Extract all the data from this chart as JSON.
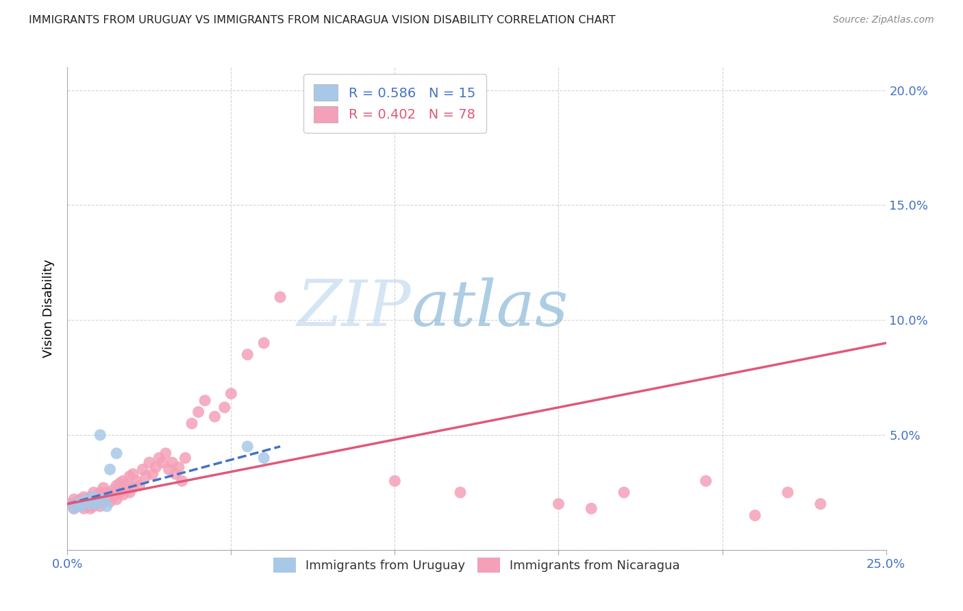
{
  "title": "IMMIGRANTS FROM URUGUAY VS IMMIGRANTS FROM NICARAGUA VISION DISABILITY CORRELATION CHART",
  "source": "Source: ZipAtlas.com",
  "ylabel": "Vision Disability",
  "xlim": [
    0.0,
    0.25
  ],
  "ylim": [
    0.0,
    0.21
  ],
  "x_ticks": [
    0.0,
    0.05,
    0.1,
    0.15,
    0.2,
    0.25
  ],
  "y_ticks": [
    0.0,
    0.05,
    0.1,
    0.15,
    0.2
  ],
  "legend_r1": "R = 0.586",
  "legend_n1": "N = 15",
  "legend_r2": "R = 0.402",
  "legend_n2": "N = 78",
  "uruguay_color": "#a8c8e8",
  "nicaragua_color": "#f4a0b8",
  "uruguay_line_color": "#4472c4",
  "nicaragua_line_color": "#e05878",
  "grid_color": "#d0d0d0",
  "title_color": "#222222",
  "axis_label_color": "#4472c4",
  "background_color": "#ffffff",
  "uruguay_scatter_x": [
    0.002,
    0.003,
    0.004,
    0.005,
    0.006,
    0.007,
    0.008,
    0.009,
    0.01,
    0.011,
    0.012,
    0.013,
    0.015,
    0.055,
    0.06
  ],
  "uruguay_scatter_y": [
    0.018,
    0.02,
    0.019,
    0.021,
    0.022,
    0.02,
    0.023,
    0.02,
    0.05,
    0.022,
    0.019,
    0.035,
    0.042,
    0.045,
    0.04
  ],
  "nicaragua_scatter_x": [
    0.001,
    0.002,
    0.002,
    0.003,
    0.003,
    0.004,
    0.004,
    0.005,
    0.005,
    0.005,
    0.006,
    0.006,
    0.007,
    0.007,
    0.007,
    0.008,
    0.008,
    0.008,
    0.009,
    0.009,
    0.01,
    0.01,
    0.01,
    0.011,
    0.011,
    0.011,
    0.012,
    0.012,
    0.013,
    0.013,
    0.014,
    0.014,
    0.015,
    0.015,
    0.016,
    0.016,
    0.017,
    0.017,
    0.018,
    0.018,
    0.019,
    0.019,
    0.02,
    0.02,
    0.021,
    0.022,
    0.023,
    0.024,
    0.025,
    0.026,
    0.027,
    0.028,
    0.029,
    0.03,
    0.031,
    0.032,
    0.033,
    0.034,
    0.035,
    0.036,
    0.038,
    0.04,
    0.042,
    0.045,
    0.048,
    0.05,
    0.055,
    0.06,
    0.065,
    0.1,
    0.12,
    0.15,
    0.16,
    0.17,
    0.195,
    0.21,
    0.22,
    0.23
  ],
  "nicaragua_scatter_y": [
    0.02,
    0.018,
    0.022,
    0.019,
    0.021,
    0.02,
    0.022,
    0.018,
    0.021,
    0.023,
    0.019,
    0.022,
    0.018,
    0.02,
    0.023,
    0.019,
    0.021,
    0.025,
    0.02,
    0.023,
    0.019,
    0.022,
    0.025,
    0.021,
    0.024,
    0.027,
    0.022,
    0.025,
    0.021,
    0.024,
    0.023,
    0.026,
    0.022,
    0.028,
    0.025,
    0.029,
    0.024,
    0.03,
    0.026,
    0.028,
    0.025,
    0.032,
    0.027,
    0.033,
    0.03,
    0.028,
    0.035,
    0.032,
    0.038,
    0.033,
    0.036,
    0.04,
    0.038,
    0.042,
    0.035,
    0.038,
    0.033,
    0.036,
    0.03,
    0.04,
    0.055,
    0.06,
    0.065,
    0.058,
    0.062,
    0.068,
    0.085,
    0.09,
    0.11,
    0.03,
    0.025,
    0.02,
    0.018,
    0.025,
    0.03,
    0.015,
    0.025,
    0.02
  ],
  "uruguay_line_x": [
    0.0,
    0.065
  ],
  "uruguay_line_y": [
    0.02,
    0.045
  ],
  "nicaragua_line_x": [
    0.0,
    0.25
  ],
  "nicaragua_line_y": [
    0.02,
    0.09
  ]
}
